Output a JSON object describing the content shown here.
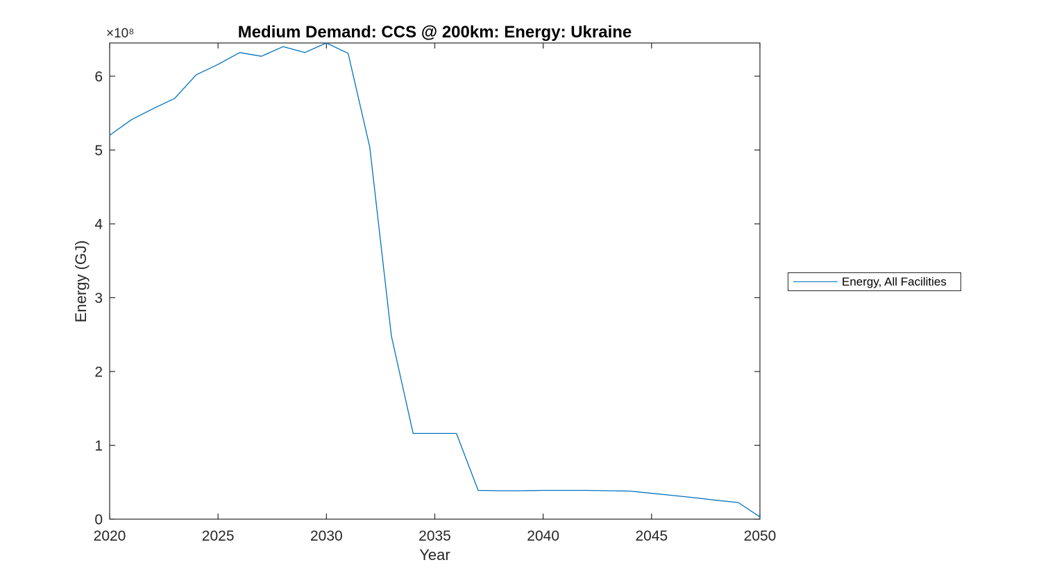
{
  "figure": {
    "background": "#ffffff",
    "axes_color": "#262626",
    "text_color": "#262626"
  },
  "chart_data": {
    "type": "line",
    "title": "Medium Demand: CCS @ 200km: Energy: Ukraine",
    "xlabel": "Year",
    "ylabel": "Energy (GJ)",
    "y_multiplier": "×10⁸",
    "xlim": [
      2020,
      2050
    ],
    "ylim": [
      0,
      645000000
    ],
    "xticks": [
      2020,
      2025,
      2030,
      2035,
      2040,
      2045,
      2050
    ],
    "xtick_labels": [
      "2020",
      "2025",
      "2030",
      "2035",
      "2040",
      "2045",
      "2050"
    ],
    "yticks": [
      0,
      100000000,
      200000000,
      300000000,
      400000000,
      500000000,
      600000000
    ],
    "ytick_labels": [
      "0",
      "1",
      "2",
      "3",
      "4",
      "5",
      "6"
    ],
    "grid": false,
    "box": true,
    "legend_position": "right-outside",
    "x": [
      2020,
      2021,
      2022,
      2023,
      2024,
      2025,
      2026,
      2027,
      2028,
      2029,
      2030,
      2031,
      2032,
      2033,
      2034,
      2035,
      2036,
      2037,
      2038,
      2039,
      2040,
      2041,
      2042,
      2043,
      2044,
      2045,
      2046,
      2047,
      2048,
      2049,
      2050
    ],
    "series": [
      {
        "name": "Energy, All Facilities",
        "color": "#0072BD",
        "values": [
          520000000,
          541000000,
          556000000,
          570000000,
          602000000,
          616000000,
          632000000,
          627000000,
          640000000,
          632000000,
          645000000,
          631000000,
          504000000,
          248000000,
          116000000,
          116000000,
          116000000,
          39000000,
          38500000,
          38500000,
          39000000,
          39000000,
          39000000,
          38500000,
          38000000,
          35000000,
          32000000,
          29000000,
          25500000,
          22500000,
          3000000
        ]
      }
    ]
  },
  "legend": {
    "entries": [
      {
        "label": "Energy, All Facilities",
        "color": "#0072BD"
      }
    ]
  }
}
